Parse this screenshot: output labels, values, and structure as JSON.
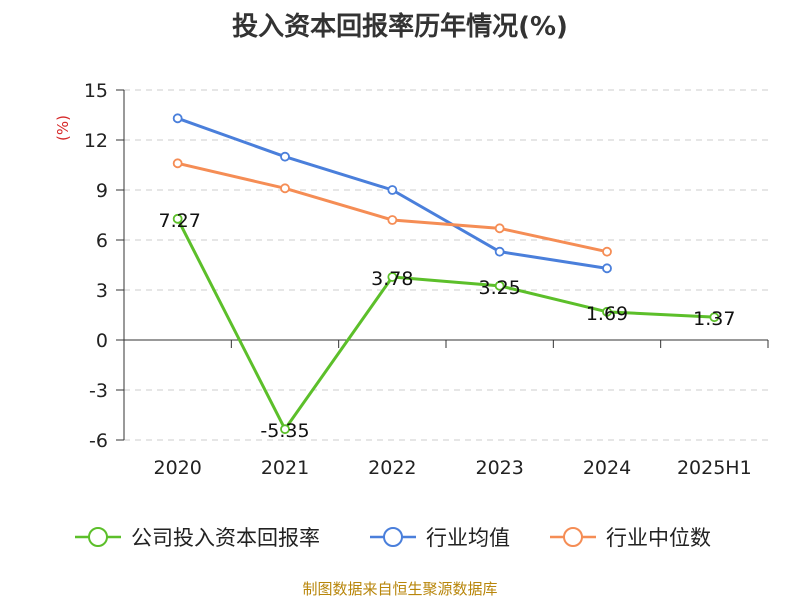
{
  "title": "投入资本回报率历年情况(%)",
  "source": "制图数据来自恒生聚源数据库",
  "chart_data": {
    "type": "line",
    "categories": [
      "2020",
      "2021",
      "2022",
      "2023",
      "2024",
      "2025H1"
    ],
    "ylabel": "(%)",
    "ylim": [
      -6,
      15
    ],
    "yticks": [
      -6,
      -3,
      0,
      3,
      6,
      9,
      12,
      15
    ],
    "grid": true,
    "legend_position": "bottom",
    "series": [
      {
        "name": "公司投入资本回报率",
        "color": "#5cbf2a",
        "values": [
          7.27,
          -5.35,
          3.78,
          3.25,
          1.69,
          1.37
        ],
        "labels": [
          "7.27",
          "-5.35",
          "3.78",
          "3.25",
          "1.69",
          "1.37"
        ]
      },
      {
        "name": "行业均值",
        "color": "#4a7fdb",
        "values": [
          13.3,
          11.0,
          9.0,
          5.3,
          4.3,
          null
        ]
      },
      {
        "name": "行业中位数",
        "color": "#f58d55",
        "values": [
          10.6,
          9.1,
          7.2,
          6.7,
          5.3,
          null
        ]
      }
    ]
  }
}
